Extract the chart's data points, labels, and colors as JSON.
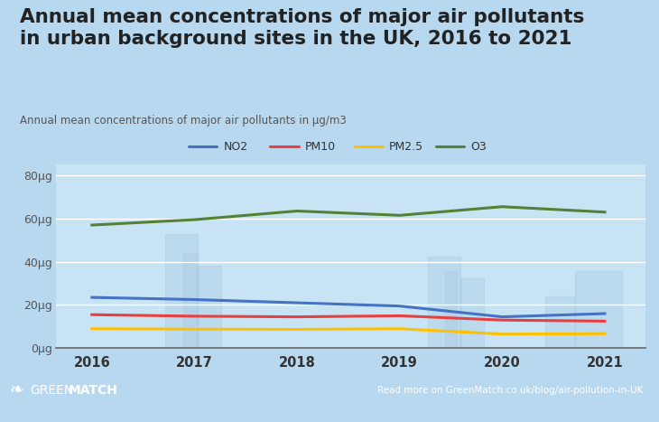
{
  "title_line1": "Annual mean concentrations of major air pollutants",
  "title_line2": "in urban background sites in the UK, 2016 to 2021",
  "subtitle": "Annual mean concentrations of major air pollutants in μg/m3",
  "years": [
    2016,
    2017,
    2018,
    2019,
    2020,
    2021
  ],
  "NO2": [
    23.5,
    22.5,
    21.0,
    19.5,
    14.5,
    16.0
  ],
  "PM10": [
    15.5,
    14.8,
    14.5,
    15.0,
    13.0,
    12.5
  ],
  "PM25": [
    9.0,
    8.8,
    8.7,
    9.0,
    6.5,
    6.7
  ],
  "O3": [
    57.0,
    59.5,
    63.5,
    61.5,
    65.5,
    63.0
  ],
  "NO2_color": "#4472c4",
  "PM10_color": "#e84040",
  "PM25_color": "#ffc000",
  "O3_color": "#538135",
  "bg_color": "#b8d8f0",
  "plot_bg": "#c8e4f4",
  "grid_color": "#ffffff",
  "title_color": "#222222",
  "subtitle_color": "#555555",
  "footer_right": "Read more on GreenMatch.co.uk/blog/air-pollution-in-UK",
  "ylim": [
    0,
    85
  ],
  "yticks": [
    0,
    20,
    40,
    60,
    80
  ],
  "ytick_labels": [
    "0μg",
    "20μg",
    "40μg",
    "60μg",
    "80μg"
  ],
  "line_width": 2.2,
  "legend_items": [
    "NO2",
    "PM10",
    "PM2.5",
    "O3"
  ],
  "legend_colors": [
    "#4472c4",
    "#e84040",
    "#ffc000",
    "#538135"
  ]
}
